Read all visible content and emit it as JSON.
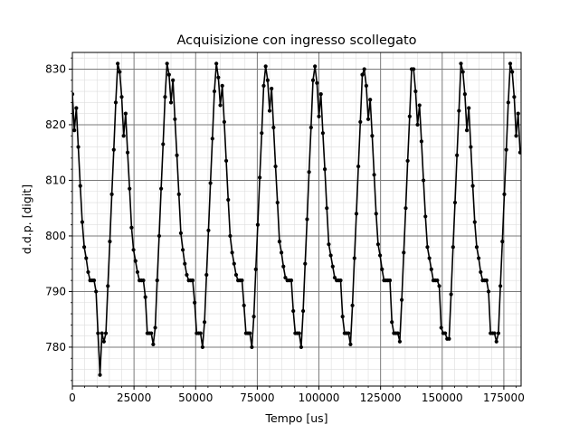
{
  "chart_data": {
    "type": "line",
    "title": "Acquisizione con ingresso scollegato",
    "xlabel": "Tempo [us]",
    "ylabel": "d.d.p. [digit]",
    "xlim": [
      0,
      182000
    ],
    "ylim": [
      773,
      833
    ],
    "xticks": [
      0,
      25000,
      50000,
      75000,
      100000,
      125000,
      150000,
      175000
    ],
    "yticks": [
      780,
      790,
      800,
      810,
      820,
      830
    ],
    "grid": {
      "major": true,
      "minor": true
    },
    "line_color": "#000000",
    "marker": "circle",
    "period_us": 19900,
    "first_peak_us": 18300,
    "baseline_level": 792,
    "trough_level": 782.5,
    "peak_level": 831,
    "sample_step_us": 800,
    "series": [
      {
        "x": [],
        "y": []
      }
    ]
  }
}
